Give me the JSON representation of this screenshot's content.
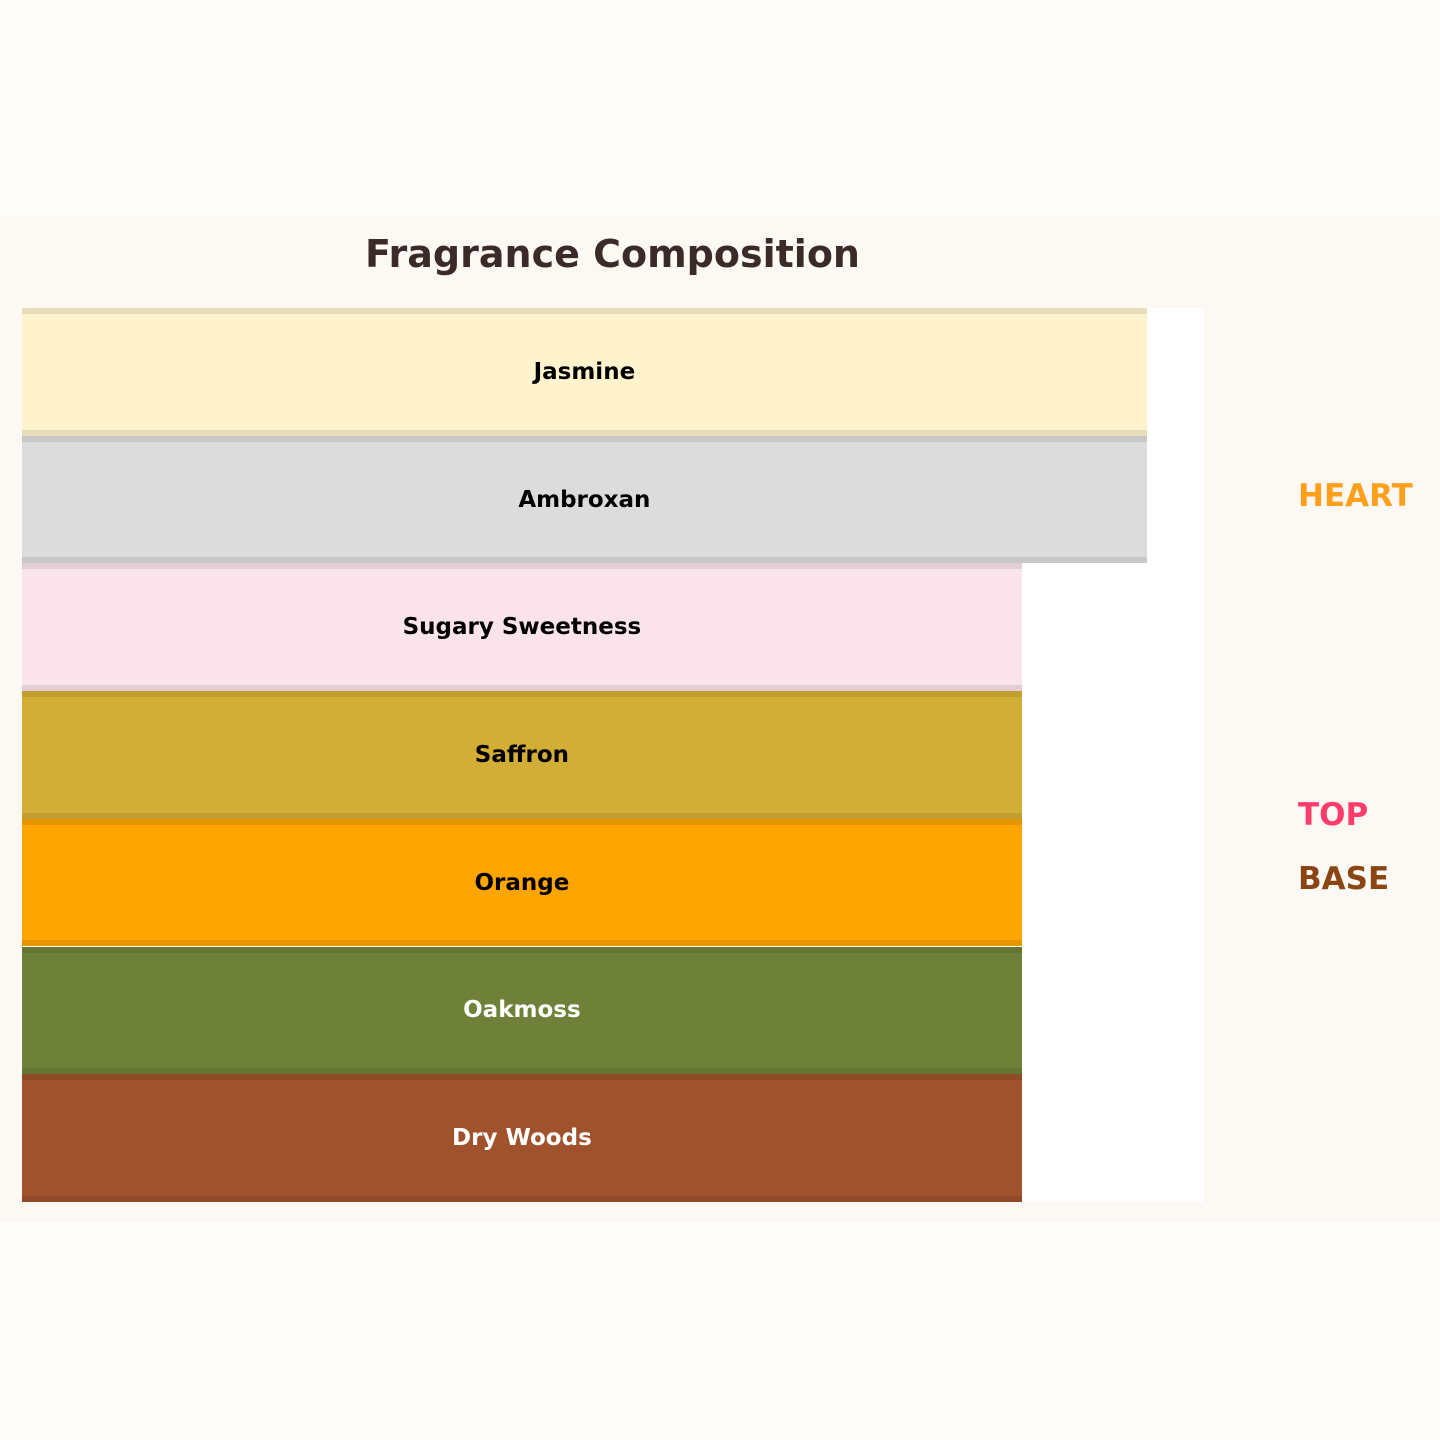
{
  "chart_data": {
    "type": "bar",
    "orientation": "horizontal",
    "title": "Fragrance Composition",
    "categories": [
      "Jasmine",
      "Ambroxan",
      "Sugary Sweetness",
      "Saffron",
      "Orange",
      "Oakmoss",
      "Dry Woods"
    ],
    "values": [
      9,
      9,
      8,
      8,
      8,
      8,
      8
    ],
    "xlim": [
      0,
      9.45
    ],
    "grid": false,
    "colors": [
      "#fef3cd",
      "#dcdcdc",
      "#fae3eb",
      "#d3ae37",
      "#ffa500",
      "#6f8138",
      "#a0522d"
    ],
    "label_colors": [
      "#000000",
      "#000000",
      "#000000",
      "#000000",
      "#000000",
      "#ffffff",
      "#ffffff"
    ],
    "stage_labels": [
      {
        "text": "HEART",
        "color": "#ff9f1c"
      },
      {
        "text": "TOP",
        "color": "#ff3b6b"
      },
      {
        "text": "BASE",
        "color": "#8b4513"
      }
    ]
  }
}
